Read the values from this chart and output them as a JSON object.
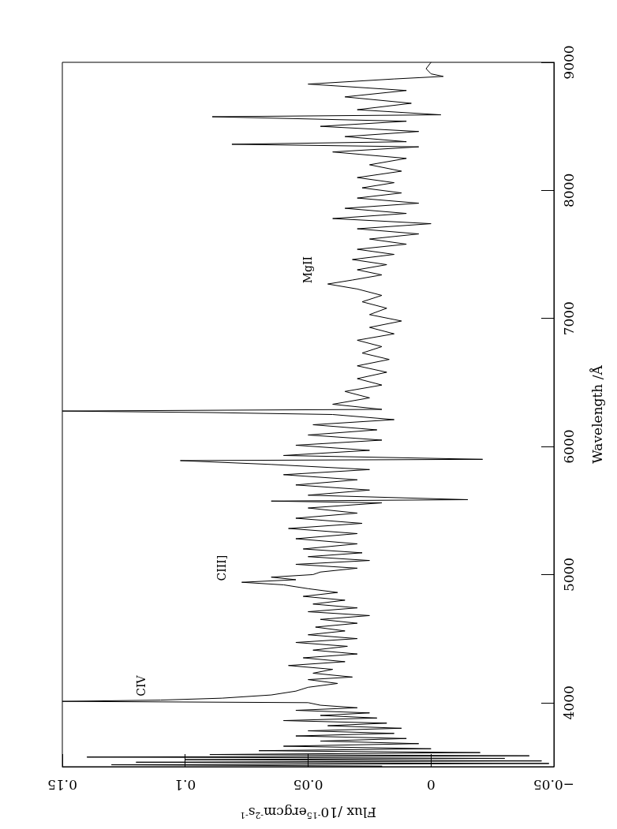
{
  "chart_data": {
    "type": "line",
    "xlabel": "Flux /10$^{-15}$ergcm$^{-2}$s$^{-1}$",
    "ylabel": "Wavelength /Å",
    "xlim": [
      0.15,
      -0.05
    ],
    "xticks": [
      {
        "value": -0.05,
        "label": "−0.05"
      },
      0,
      0.05,
      0.1,
      0.15
    ],
    "ylim": [
      3500,
      9000
    ],
    "yticks": [
      4000,
      5000,
      6000,
      7000,
      8000,
      9000
    ],
    "marker": "none",
    "line_style": "solid",
    "annotations": [
      {
        "text": "CIV",
        "x": 0.11,
        "y": 4020
      },
      {
        "text": "CIII]",
        "x": 0.077,
        "y": 4940
      },
      {
        "text": "MgII",
        "x": 0.042,
        "y": 7269
      }
    ],
    "series": [
      {
        "color": "#000000",
        "values": [
          3505,
          3515,
          3525,
          3535,
          3545,
          3555,
          3565,
          3575,
          3585,
          3595,
          3610,
          3625,
          3640,
          3660,
          3680,
          3700,
          3720,
          3740,
          3760,
          3780,
          3800,
          3820,
          3840,
          3860,
          3880,
          3900,
          3920,
          3940,
          3960,
          3980,
          4000,
          4010,
          4020,
          4035,
          4060,
          4090,
          4120,
          4150,
          4180,
          4200,
          4230,
          4260,
          4290,
          4320,
          4350,
          4380,
          4410,
          4440,
          4470,
          4500,
          4530,
          4560,
          4590,
          4620,
          4650,
          4680,
          4710,
          4740,
          4770,
          4800,
          4830,
          4860,
          4890,
          4920,
          4940,
          4960,
          4980,
          5000,
          5020,
          5050,
          5080,
          5110,
          5140,
          5170,
          5200,
          5240,
          5280,
          5320,
          5360,
          5400,
          5440,
          5480,
          5520,
          5560,
          5574,
          5585,
          5620,
          5660,
          5700,
          5740,
          5780,
          5820,
          5860,
          5890,
          5900,
          5930,
          5970,
          6010,
          6050,
          6090,
          6130,
          6170,
          6210,
          6250,
          6265,
          6277,
          6290,
          6330,
          6380,
          6430,
          6480,
          6530,
          6580,
          6630,
          6680,
          6730,
          6780,
          6830,
          6880,
          6930,
          6980,
          7030,
          7080,
          7130,
          7180,
          7230,
          7269,
          7300,
          7340,
          7380,
          7420,
          7460,
          7500,
          7540,
          7580,
          7620,
          7660,
          7700,
          7740,
          7780,
          7820,
          7860,
          7900,
          7940,
          7980,
          8020,
          8060,
          8100,
          8150,
          8200,
          8250,
          8300,
          8340,
          8360,
          8380,
          8420,
          8460,
          8500,
          8540,
          8575,
          8590,
          8630,
          8680,
          8730,
          8780,
          8830,
          8870,
          8890,
          8910,
          8950,
          9000
        ],
        "x": [
          0.02,
          0.13,
          -0.048,
          0.12,
          -0.045,
          0.1,
          -0.03,
          0.14,
          -0.04,
          0.09,
          -0.02,
          0.07,
          0.0,
          0.06,
          0.005,
          0.045,
          0.01,
          0.055,
          0.015,
          0.05,
          0.012,
          0.042,
          0.018,
          0.06,
          0.022,
          0.045,
          0.025,
          0.055,
          0.03,
          0.045,
          0.05,
          0.15,
          0.11,
          0.085,
          0.065,
          0.055,
          0.05,
          0.038,
          0.05,
          0.032,
          0.048,
          0.04,
          0.058,
          0.035,
          0.052,
          0.03,
          0.048,
          0.034,
          0.055,
          0.03,
          0.05,
          0.035,
          0.047,
          0.03,
          0.045,
          0.025,
          0.05,
          0.03,
          0.048,
          0.035,
          0.052,
          0.038,
          0.05,
          0.06,
          0.077,
          0.055,
          0.065,
          0.048,
          0.045,
          0.03,
          0.055,
          0.025,
          0.05,
          0.028,
          0.052,
          0.03,
          0.055,
          0.03,
          0.058,
          0.028,
          0.055,
          0.03,
          0.05,
          0.02,
          0.065,
          -0.015,
          0.05,
          0.025,
          0.055,
          0.03,
          0.06,
          0.025,
          0.065,
          0.102,
          -0.021,
          0.06,
          0.025,
          0.055,
          0.02,
          0.05,
          0.022,
          0.048,
          0.015,
          0.04,
          0.089,
          0.15,
          0.02,
          0.04,
          0.025,
          0.035,
          0.02,
          0.03,
          0.018,
          0.03,
          0.017,
          0.028,
          0.02,
          0.03,
          0.015,
          0.025,
          0.012,
          0.025,
          0.018,
          0.028,
          0.02,
          0.03,
          0.042,
          0.032,
          0.02,
          0.03,
          0.018,
          0.032,
          0.015,
          0.03,
          0.01,
          0.025,
          0.005,
          0.03,
          0.0,
          0.04,
          0.01,
          0.035,
          0.005,
          0.03,
          0.012,
          0.028,
          0.015,
          0.03,
          0.012,
          0.025,
          0.01,
          0.04,
          0.005,
          0.081,
          0.01,
          0.035,
          0.005,
          0.045,
          0.01,
          0.089,
          -0.004,
          0.03,
          0.008,
          0.035,
          0.01,
          0.05,
          0.015,
          -0.005,
          0.0,
          0.002,
          0.0
        ]
      }
    ]
  }
}
